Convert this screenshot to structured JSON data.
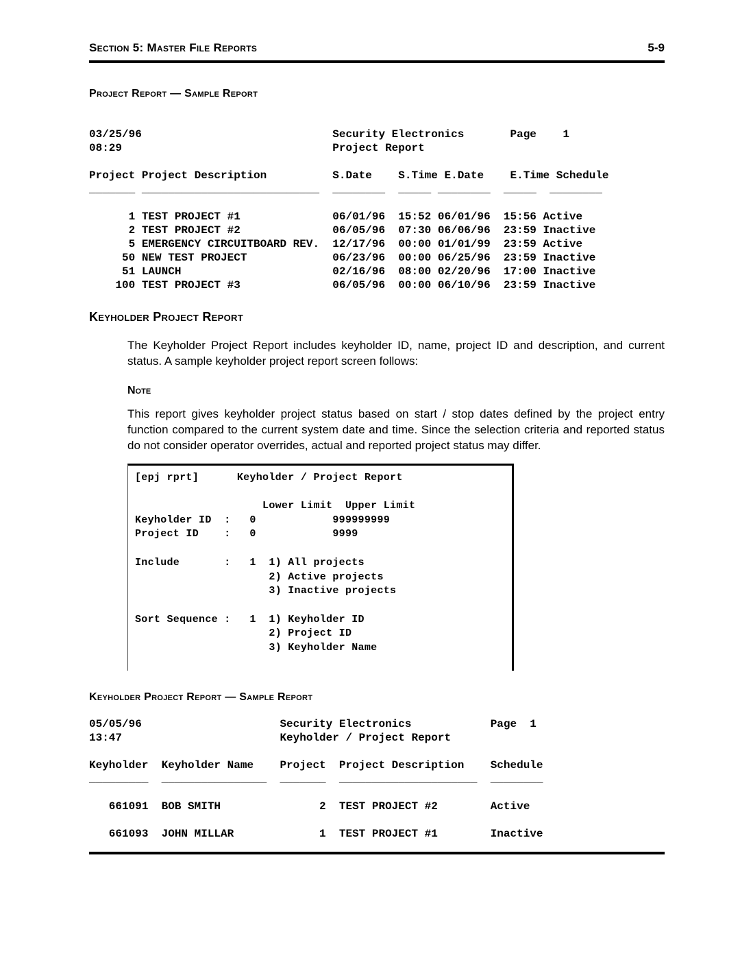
{
  "header": {
    "left": "Section 5: Master File Reports",
    "right": "5-9"
  },
  "report1": {
    "heading": "Project Report — Sample Report",
    "date": "03/25/96",
    "time": "08:29",
    "org": "Security Electronics",
    "title": "Project Report",
    "page_label": "Page",
    "page_num": "1",
    "col": {
      "proj_id": "Project",
      "desc": "Project Description",
      "sdate": "S.Date",
      "stime": "S.Time",
      "edate": "E.Date",
      "etime": "E.Time",
      "sched": "Schedule"
    },
    "rows": [
      {
        "id": "1",
        "desc": "TEST PROJECT #1",
        "sd": "06/01/96",
        "st": "15:52",
        "ed": "06/01/96",
        "et": "15:56",
        "sc": "Active"
      },
      {
        "id": "2",
        "desc": "TEST PROJECT #2",
        "sd": "06/05/96",
        "st": "07:30",
        "ed": "06/06/96",
        "et": "23:59",
        "sc": "Inactive"
      },
      {
        "id": "5",
        "desc": "EMERGENCY CIRCUITBOARD REV.",
        "sd": "12/17/96",
        "st": "00:00",
        "ed": "01/01/99",
        "et": "23:59",
        "sc": "Active"
      },
      {
        "id": "50",
        "desc": "NEW TEST PROJECT",
        "sd": "06/23/96",
        "st": "00:00",
        "ed": "06/25/96",
        "et": "23:59",
        "sc": "Inactive"
      },
      {
        "id": "51",
        "desc": "LAUNCH",
        "sd": "02/16/96",
        "st": "08:00",
        "ed": "02/20/96",
        "et": "17:00",
        "sc": "Inactive"
      },
      {
        "id": "100",
        "desc": "TEST PROJECT #3",
        "sd": "06/05/96",
        "st": "00:00",
        "ed": "06/10/96",
        "et": "23:59",
        "sc": "Inactive"
      }
    ]
  },
  "khpr": {
    "heading": "Keyholder Project Report",
    "para1": "The Keyholder Project Report includes keyholder ID, name, project ID and description, and current status.  A sample keyholder project report screen follows:",
    "note_label": "Note",
    "note_text": "This report gives keyholder project status based on start / stop dates defined by the project entry function compared to the current system date and time.  Since the selection criteria and reported status do not consider operator overrides, actual and reported project status may differ."
  },
  "term": {
    "tag": "[epj rprt]",
    "title": "Keyholder / Project Report",
    "hdr_lower": "Lower Limit",
    "hdr_upper": "Upper Limit",
    "row1_lbl": "Keyholder ID",
    "row1_lo": "0",
    "row1_hi": "999999999",
    "row2_lbl": "Project ID",
    "row2_lo": "0",
    "row2_hi": "9999",
    "inc_lbl": "Include",
    "inc_val": "1",
    "inc_o1": "1) All projects",
    "inc_o2": "2) Active projects",
    "inc_o3": "3) Inactive projects",
    "sort_lbl": "Sort Sequence",
    "sort_val": "1",
    "sort_o1": "1) Keyholder ID",
    "sort_o2": "2) Project ID",
    "sort_o3": "3) Keyholder Name"
  },
  "report2": {
    "heading": "Keyholder Project Report — Sample Report",
    "date": "05/05/96",
    "time": "13:47",
    "org": "Security Electronics",
    "title": "Keyholder / Project Report",
    "page_label": "Page",
    "page_num": "1",
    "col": {
      "kh": "Keyholder",
      "name": "Keyholder Name",
      "proj": "Project",
      "desc": "Project Description",
      "sched": "Schedule"
    },
    "rows": [
      {
        "kh": "661091",
        "name": "BOB SMITH",
        "proj": "2",
        "desc": "TEST PROJECT #2",
        "sc": "Active"
      },
      {
        "kh": "661093",
        "name": "JOHN MILLAR",
        "proj": "1",
        "desc": "TEST PROJECT #1",
        "sc": "Inactive"
      }
    ]
  }
}
